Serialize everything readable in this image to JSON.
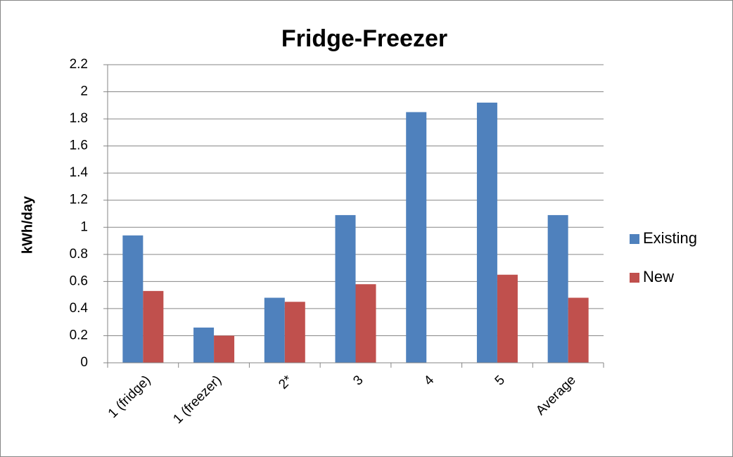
{
  "chart_data": {
    "type": "bar",
    "title": "Fridge-Freezer",
    "y_label": "kWh/day",
    "categories": [
      "1 (fridge)",
      "1 (freezer)",
      "2*",
      "3",
      "4",
      "5",
      "Average"
    ],
    "series": [
      {
        "name": "Existing",
        "color": "#4f81bd",
        "values": [
          0.94,
          0.26,
          0.48,
          1.09,
          1.85,
          1.92,
          1.09
        ]
      },
      {
        "name": "New",
        "color": "#c0504d",
        "values": [
          0.53,
          0.2,
          0.45,
          0.58,
          null,
          0.65,
          0.48
        ]
      }
    ],
    "ylim": [
      0,
      2.2
    ],
    "yticks": [
      0,
      0.2,
      0.4,
      0.6,
      0.8,
      1,
      1.2,
      1.4,
      1.6,
      1.8,
      2,
      2.2
    ],
    "grid": true,
    "legend": "right"
  }
}
